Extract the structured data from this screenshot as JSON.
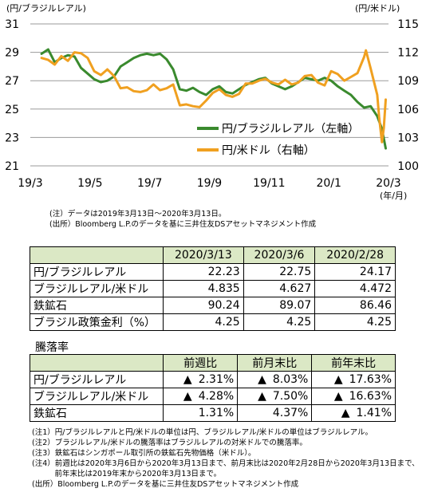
{
  "chart_data": {
    "type": "line",
    "left_unit": "(円/ブラジルレアル)",
    "right_unit": "(円/米ドル)",
    "x_unit": "(年/月)",
    "x_ticks": [
      "19/3",
      "19/5",
      "19/7",
      "19/9",
      "19/11",
      "20/1",
      "20/3"
    ],
    "y_left_ticks": [
      "31",
      "29",
      "27",
      "25",
      "23",
      "21"
    ],
    "y_right_ticks": [
      "115",
      "112",
      "109",
      "106",
      "103",
      "100"
    ],
    "y_left_lim": [
      21,
      31
    ],
    "y_right_lim": [
      100,
      115
    ],
    "series": [
      {
        "name": "円/ブラジルレアル（左軸）",
        "axis": "left",
        "color": "#3a8a2e",
        "x": [
          "2019-03-13",
          "2019-03-20",
          "2019-03-27",
          "2019-04-03",
          "2019-04-10",
          "2019-04-17",
          "2019-04-24",
          "2019-05-01",
          "2019-05-08",
          "2019-05-15",
          "2019-05-22",
          "2019-05-29",
          "2019-06-05",
          "2019-06-12",
          "2019-06-19",
          "2019-06-26",
          "2019-07-03",
          "2019-07-10",
          "2019-07-17",
          "2019-07-24",
          "2019-07-31",
          "2019-08-07",
          "2019-08-14",
          "2019-08-21",
          "2019-08-28",
          "2019-09-04",
          "2019-09-11",
          "2019-09-18",
          "2019-09-25",
          "2019-10-02",
          "2019-10-09",
          "2019-10-16",
          "2019-10-23",
          "2019-10-30",
          "2019-11-06",
          "2019-11-13",
          "2019-11-20",
          "2019-11-27",
          "2019-12-04",
          "2019-12-11",
          "2019-12-18",
          "2019-12-25",
          "2020-01-01",
          "2020-01-08",
          "2020-01-15",
          "2020-01-22",
          "2020-01-29",
          "2020-02-05",
          "2020-02-12",
          "2020-02-19",
          "2020-02-26",
          "2020-03-04",
          "2020-03-09",
          "2020-03-13"
        ],
        "values": [
          28.9,
          29.2,
          28.3,
          28.6,
          28.8,
          28.7,
          27.9,
          27.5,
          27.1,
          26.9,
          27.0,
          27.3,
          28.0,
          28.3,
          28.6,
          28.8,
          28.9,
          28.8,
          28.9,
          28.5,
          27.8,
          26.4,
          26.3,
          26.5,
          26.2,
          26.0,
          26.4,
          26.6,
          26.2,
          26.1,
          26.4,
          26.7,
          26.9,
          27.1,
          27.2,
          26.8,
          26.6,
          26.4,
          26.6,
          26.9,
          27.2,
          27.1,
          27.0,
          27.2,
          27.0,
          26.6,
          26.3,
          26.0,
          25.5,
          25.1,
          25.2,
          24.5,
          23.6,
          22.23
        ]
      },
      {
        "name": "円/米ドル（右軸）",
        "axis": "right",
        "color": "#f0a020",
        "x": [
          "2019-03-13",
          "2019-03-20",
          "2019-03-27",
          "2019-04-03",
          "2019-04-10",
          "2019-04-17",
          "2019-04-24",
          "2019-05-01",
          "2019-05-08",
          "2019-05-15",
          "2019-05-22",
          "2019-05-29",
          "2019-06-05",
          "2019-06-12",
          "2019-06-19",
          "2019-06-26",
          "2019-07-03",
          "2019-07-10",
          "2019-07-17",
          "2019-07-24",
          "2019-07-31",
          "2019-08-07",
          "2019-08-14",
          "2019-08-21",
          "2019-08-28",
          "2019-09-04",
          "2019-09-11",
          "2019-09-18",
          "2019-09-25",
          "2019-10-02",
          "2019-10-09",
          "2019-10-16",
          "2019-10-23",
          "2019-10-30",
          "2019-11-06",
          "2019-11-13",
          "2019-11-20",
          "2019-11-27",
          "2019-12-04",
          "2019-12-11",
          "2019-12-18",
          "2019-12-25",
          "2020-01-01",
          "2020-01-08",
          "2020-01-15",
          "2020-01-22",
          "2020-01-29",
          "2020-02-05",
          "2020-02-12",
          "2020-02-19",
          "2020-02-21",
          "2020-02-26",
          "2020-03-04",
          "2020-03-06",
          "2020-03-09",
          "2020-03-11",
          "2020-03-13"
        ],
        "values": [
          111.4,
          111.2,
          110.7,
          111.6,
          111.1,
          112.0,
          111.9,
          111.4,
          110.0,
          109.6,
          110.2,
          109.5,
          108.2,
          108.3,
          107.9,
          107.8,
          108.0,
          108.6,
          108.0,
          108.2,
          108.6,
          106.4,
          106.5,
          106.3,
          106.2,
          106.9,
          107.7,
          108.1,
          107.5,
          107.3,
          107.6,
          108.7,
          108.7,
          109.0,
          109.2,
          108.8,
          108.6,
          109.1,
          108.6,
          108.8,
          109.5,
          109.6,
          108.8,
          108.5,
          110.0,
          109.7,
          109.0,
          109.4,
          109.8,
          111.5,
          112.2,
          110.3,
          107.5,
          105.2,
          102.5,
          104.0,
          107.0
        ]
      }
    ],
    "notes": [
      "(注）データは2019年3月13日～2020年3月13日。",
      "(出所）Bloomberg L.P.のデータを基に三井住友DSアセットマネジメント作成"
    ]
  },
  "table1": {
    "headers": [
      "2020/3/13",
      "2020/3/6",
      "2020/2/28"
    ],
    "rows": [
      {
        "label": "円/ブラジルレアル",
        "values": [
          "22.23",
          "22.75",
          "24.17"
        ]
      },
      {
        "label": "ブラジルレアル/米ドル",
        "values": [
          "4.835",
          "4.627",
          "4.472"
        ]
      },
      {
        "label": "鉄鉱石",
        "values": [
          "90.24",
          "89.07",
          "86.46"
        ]
      },
      {
        "label": "ブラジル政策金利（%）",
        "values": [
          "4.25",
          "4.25",
          "4.25"
        ]
      }
    ]
  },
  "table2": {
    "title": "騰落率",
    "headers": [
      "前週比",
      "前月末比",
      "前年末比"
    ],
    "rows": [
      {
        "label": "円/ブラジルレアル",
        "cells": [
          {
            "mark": "▲",
            "value": "2.31%"
          },
          {
            "mark": "▲",
            "value": "8.03%"
          },
          {
            "mark": "▲",
            "value": "17.63%"
          }
        ]
      },
      {
        "label": "ブラジルレアル/米ドル",
        "cells": [
          {
            "mark": "▲",
            "value": "4.28%"
          },
          {
            "mark": "▲",
            "value": "7.50%"
          },
          {
            "mark": "▲",
            "value": "16.63%"
          }
        ]
      },
      {
        "label": "鉄鉱石",
        "cells": [
          {
            "mark": "",
            "value": "1.31%"
          },
          {
            "mark": "",
            "value": "4.37%"
          },
          {
            "mark": "▲",
            "value": "1.41%"
          }
        ]
      }
    ]
  },
  "footnotes": [
    "(注1）円/ブラジルレアルと円/米ドルの単位は円、ブラジルレアル/米ドルの単位はブラジルレアル。",
    "(注2）ブラジルレアル/米ドルの騰落率はブラジルレアルの対米ドルでの騰落率。",
    "(注3）鉄鉱石はシンガポール取引所の鉄鉱石先物価格（米ドル）。",
    "(注4）前週比は2020年3月6日から2020年3月13日まで、前月末比は2020年2月28日から2020年3月13日まで、",
    "　　　前年末比は2019年末から2020年3月13日まで。",
    "(出所）Bloomberg L.P.のデータを基に三井住友DSアセットマネジメント作成"
  ]
}
